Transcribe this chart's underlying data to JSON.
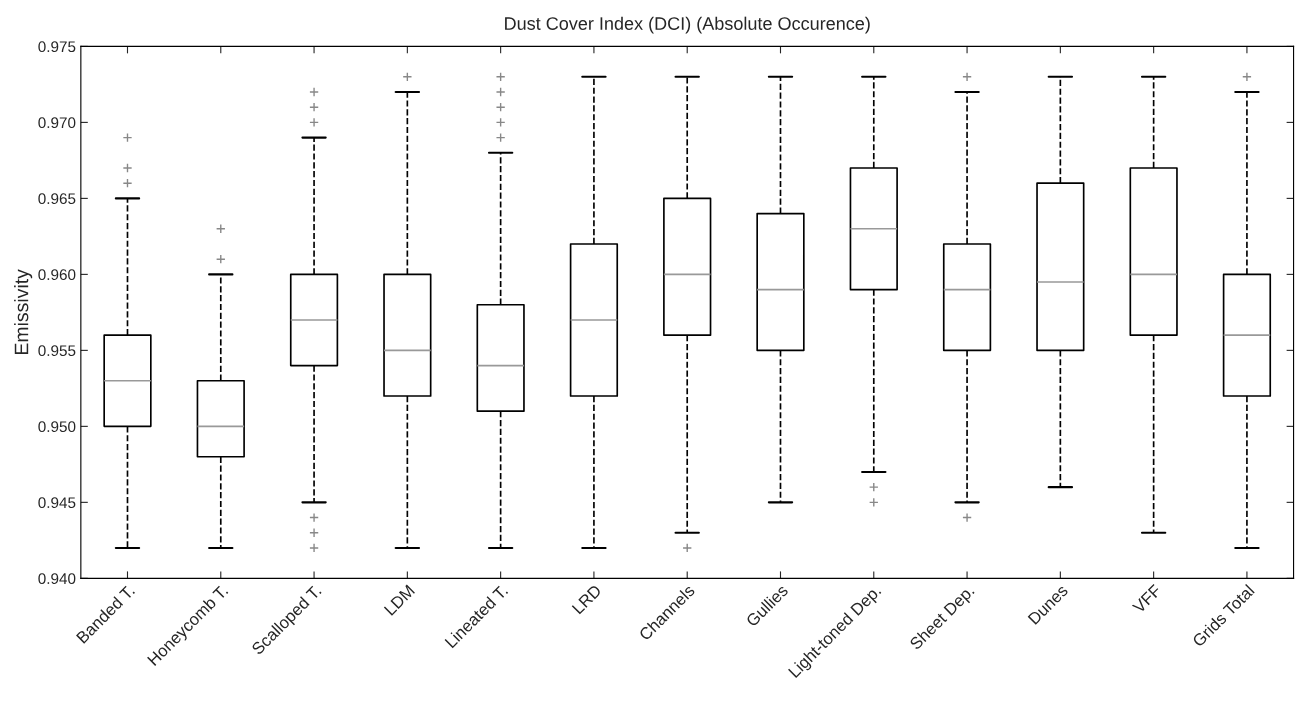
{
  "chart_data": {
    "type": "box",
    "title": "Dust Cover Index (DCI) (Absolute Occurence)",
    "ylabel": "Emissivity",
    "categories": [
      "Banded T.",
      "Honeycomb T.",
      "Scalloped T.",
      "LDM",
      "Lineated T.",
      "LRD",
      "Channels",
      "Gullies",
      "Light-toned Dep.",
      "Sheet Dep.",
      "Dunes",
      "VFF",
      "Grids Total"
    ],
    "boxes": [
      {
        "low": 0.942,
        "q1": 0.95,
        "median": 0.953,
        "q3": 0.956,
        "high": 0.965,
        "outliers": [
          0.966,
          0.967,
          0.969
        ]
      },
      {
        "low": 0.942,
        "q1": 0.948,
        "median": 0.95,
        "q3": 0.953,
        "high": 0.96,
        "outliers": [
          0.961,
          0.963
        ]
      },
      {
        "low": 0.945,
        "q1": 0.954,
        "median": 0.957,
        "q3": 0.96,
        "high": 0.969,
        "outliers": [
          0.97,
          0.971,
          0.972,
          0.944,
          0.943,
          0.942
        ]
      },
      {
        "low": 0.942,
        "q1": 0.952,
        "median": 0.955,
        "q3": 0.96,
        "high": 0.972,
        "outliers": [
          0.973
        ]
      },
      {
        "low": 0.942,
        "q1": 0.951,
        "median": 0.954,
        "q3": 0.958,
        "high": 0.968,
        "outliers": [
          0.969,
          0.97,
          0.971,
          0.972,
          0.973
        ]
      },
      {
        "low": 0.942,
        "q1": 0.952,
        "median": 0.957,
        "q3": 0.962,
        "high": 0.973
      },
      {
        "low": 0.943,
        "q1": 0.956,
        "median": 0.96,
        "q3": 0.965,
        "high": 0.973,
        "outliers": [
          0.942
        ]
      },
      {
        "low": 0.945,
        "q1": 0.955,
        "median": 0.959,
        "q3": 0.964,
        "high": 0.973
      },
      {
        "low": 0.947,
        "q1": 0.959,
        "median": 0.963,
        "q3": 0.967,
        "high": 0.973,
        "outliers": [
          0.946,
          0.945
        ]
      },
      {
        "low": 0.945,
        "q1": 0.955,
        "median": 0.959,
        "q3": 0.962,
        "high": 0.972,
        "outliers": [
          0.973,
          0.944
        ]
      },
      {
        "low": 0.946,
        "q1": 0.955,
        "median": 0.9595,
        "q3": 0.966,
        "high": 0.973
      },
      {
        "low": 0.943,
        "q1": 0.956,
        "median": 0.96,
        "q3": 0.967,
        "high": 0.973
      },
      {
        "low": 0.942,
        "q1": 0.952,
        "median": 0.956,
        "q3": 0.96,
        "high": 0.972,
        "outliers": [
          0.973
        ]
      }
    ],
    "ylim": [
      0.94,
      0.975
    ],
    "yticks": [
      {
        "value": 0.94,
        "label": "0.940"
      },
      {
        "value": 0.945,
        "label": "0.945"
      },
      {
        "value": 0.95,
        "label": "0.950"
      },
      {
        "value": 0.955,
        "label": "0.955"
      },
      {
        "value": 0.96,
        "label": "0.960"
      },
      {
        "value": 0.965,
        "label": "0.965"
      },
      {
        "value": 0.97,
        "label": "0.970"
      },
      {
        "value": 0.975,
        "label": "0.975"
      }
    ],
    "marker": "cross",
    "grid": false
  }
}
